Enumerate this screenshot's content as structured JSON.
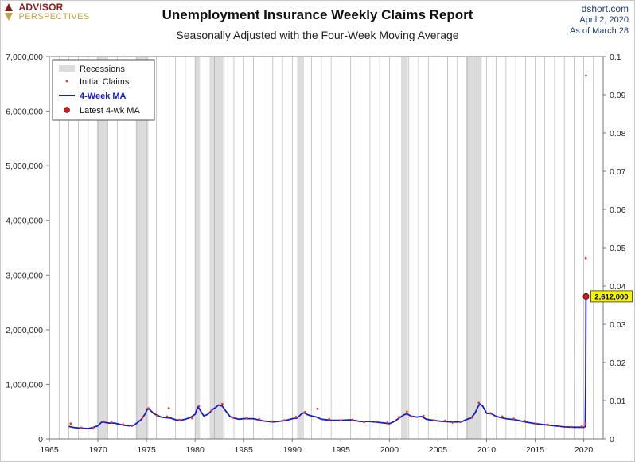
{
  "header": {
    "logo_line1": "ADVISOR",
    "logo_line2": "PERSPECTIVES",
    "title": "Unemployment Insurance Weekly Claims Report",
    "subtitle": "Seasonally Adjusted with the Four-Week Moving Average",
    "source": "dshort.com",
    "date": "April 2, 2020",
    "as_of": "As  of March 28"
  },
  "colors": {
    "recession": "#dcdcdc",
    "initial_claims": "#e23a2a",
    "ma_line": "#1a1ad0",
    "latest_point": "#d81818",
    "callout_bg": "#f5f500",
    "grid": "#a8a8a8",
    "axis_text": "#222222"
  },
  "chart_data": {
    "type": "line",
    "title": "Unemployment Insurance Weekly Claims Report",
    "subtitle": "Seasonally Adjusted with the Four-Week Moving Average",
    "xlim": [
      1965,
      2022
    ],
    "ylim": [
      0,
      7000000
    ],
    "y2lim": [
      0,
      0.1
    ],
    "grid": true,
    "legend_position": "top-left",
    "x_tick_labels": [
      "1965",
      "1970",
      "1975",
      "1980",
      "1985",
      "1990",
      "1995",
      "2000",
      "2005",
      "2010",
      "2015",
      "2020"
    ],
    "y_tick_labels": [
      "0",
      "1,000,000",
      "2,000,000",
      "3,000,000",
      "4,000,000",
      "5,000,000",
      "6,000,000",
      "7,000,000"
    ],
    "y2_tick_labels": [
      "0",
      "0.01",
      "0.02",
      "0.03",
      "0.04",
      "0.05",
      "0.06",
      "0.07",
      "0.08",
      "0.09",
      "0.1"
    ],
    "legend": [
      {
        "key": "recessions",
        "label": "Recessions"
      },
      {
        "key": "initial_claims",
        "label": "Initial Claims"
      },
      {
        "key": "ma",
        "label": "4-Week MA"
      },
      {
        "key": "latest",
        "label": "Latest 4-wk MA"
      }
    ],
    "recessions": [
      [
        1969.9,
        1970.9
      ],
      [
        1973.9,
        1975.2
      ],
      [
        1980.0,
        1980.5
      ],
      [
        1981.5,
        1982.9
      ],
      [
        1990.5,
        1991.2
      ],
      [
        2001.2,
        2001.9
      ],
      [
        2007.9,
        2009.5
      ]
    ],
    "series": [
      {
        "name": "4-Week MA",
        "x": [
          1967.0,
          1967.5,
          1968.0,
          1968.5,
          1969.0,
          1969.5,
          1970.0,
          1970.4,
          1970.8,
          1971.2,
          1971.7,
          1972.2,
          1972.7,
          1973.2,
          1973.7,
          1974.0,
          1974.5,
          1974.9,
          1975.1,
          1975.3,
          1975.7,
          1976.0,
          1976.5,
          1977.0,
          1977.5,
          1978.0,
          1978.5,
          1979.0,
          1979.5,
          1980.0,
          1980.3,
          1980.6,
          1980.9,
          1981.2,
          1981.5,
          1981.8,
          1982.1,
          1982.4,
          1982.8,
          1983.2,
          1983.6,
          1984.0,
          1984.5,
          1985.0,
          1986.0,
          1987.0,
          1988.0,
          1989.0,
          1989.6,
          1990.0,
          1990.5,
          1990.9,
          1991.2,
          1991.6,
          1992.0,
          1992.5,
          1993.0,
          1994.0,
          1995.0,
          1996.0,
          1997.0,
          1998.0,
          1999.0,
          2000.0,
          2000.5,
          2001.0,
          2001.5,
          2001.8,
          2002.2,
          2002.8,
          2003.3,
          2003.8,
          2004.5,
          2005.5,
          2006.5,
          2007.0,
          2007.5,
          2008.0,
          2008.4,
          2008.8,
          2009.1,
          2009.3,
          2009.6,
          2010.0,
          2010.5,
          2011.0,
          2012.0,
          2013.0,
          2014.0,
          2015.0,
          2016.0,
          2017.0,
          2018.0,
          2019.0,
          2019.6,
          2020.0,
          2020.15,
          2020.2,
          2020.235
        ],
        "values": [
          230000,
          210000,
          200000,
          195000,
          190000,
          210000,
          240000,
          310000,
          300000,
          290000,
          290000,
          270000,
          250000,
          240000,
          250000,
          290000,
          360000,
          470000,
          550000,
          540000,
          470000,
          440000,
          400000,
          390000,
          380000,
          350000,
          340000,
          360000,
          390000,
          450000,
          590000,
          500000,
          420000,
          440000,
          480000,
          540000,
          570000,
          620000,
          600000,
          500000,
          410000,
          380000,
          360000,
          370000,
          370000,
          330000,
          310000,
          330000,
          350000,
          370000,
          380000,
          450000,
          480000,
          440000,
          420000,
          400000,
          360000,
          340000,
          340000,
          350000,
          320000,
          320000,
          300000,
          280000,
          320000,
          380000,
          440000,
          460000,
          420000,
          400000,
          410000,
          360000,
          340000,
          320000,
          310000,
          310000,
          320000,
          360000,
          380000,
          470000,
          580000,
          640000,
          600000,
          470000,
          460000,
          410000,
          370000,
          350000,
          310000,
          280000,
          260000,
          240000,
          220000,
          215000,
          215000,
          212000,
          225000,
          1000000,
          2612000
        ]
      },
      {
        "name": "Initial Claims",
        "x": [
          1967.2,
          1968.3,
          1969.5,
          1970.6,
          1971.4,
          1972.6,
          1973.5,
          1974.6,
          1975.2,
          1976.1,
          1977.1,
          1977.3,
          1978.4,
          1979.7,
          1980.4,
          1981.7,
          1982.8,
          1983.9,
          1985.3,
          1986.6,
          1987.9,
          1989.2,
          1990.4,
          1991.3,
          1992.6,
          1993.8,
          1995.0,
          1996.2,
          1997.4,
          1998.6,
          1999.8,
          2001.0,
          2001.8,
          2002.3,
          2003.5,
          2004.6,
          2005.7,
          2006.5,
          2007.3,
          2008.5,
          2009.2,
          2010.4,
          2011.6,
          2012.8,
          2013.9,
          2015.1,
          2016.3,
          2017.5,
          2018.7,
          2019.8,
          2020.17,
          2020.21,
          2020.23
        ],
        "values": [
          280000,
          205000,
          200000,
          320000,
          300000,
          265000,
          240000,
          400000,
          560000,
          430000,
          410000,
          560000,
          350000,
          380000,
          600000,
          520000,
          640000,
          390000,
          380000,
          360000,
          320000,
          340000,
          400000,
          490000,
          550000,
          360000,
          340000,
          350000,
          310000,
          320000,
          300000,
          400000,
          500000,
          410000,
          420000,
          340000,
          330000,
          300000,
          310000,
          390000,
          660000,
          470000,
          410000,
          370000,
          330000,
          280000,
          260000,
          240000,
          220000,
          230000,
          282000,
          3307000,
          6648000
        ]
      }
    ],
    "latest": {
      "x": 2020.235,
      "value": 2612000,
      "label": "2,612,000"
    }
  }
}
